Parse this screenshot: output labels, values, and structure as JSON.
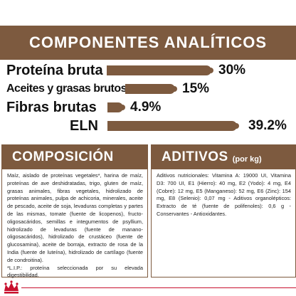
{
  "header": {
    "title": "COMPONENTES ANALÍTICOS"
  },
  "analytics": [
    {
      "label": "Proteína bruta",
      "value": "30%",
      "percent": 30
    },
    {
      "label": "Aceites y grasas brutos",
      "value": "15%",
      "percent": 15
    },
    {
      "label": "Fibras brutas",
      "value": "4.9%",
      "percent": 4.9
    },
    {
      "label": "ELN",
      "value": "39.2%",
      "percent": 39.2
    }
  ],
  "composicion": {
    "title": "COMPOSICIÓN",
    "text": "Maíz, aislado de proteínas vegetales*, harina de maíz, proteínas de ave deshidratadas, trigo, gluten de maíz, grasas animales, fibras vegetales, hidrolizado de proteínas animales, pulpa de achicoria, minerales, aceite de pescado, aceite de soja, levaduras completas y partes de las mismas, tomate (fuente de licopenos), fructo-oligosacáridos, semillas e integumentos de psyllium, hidrolizado de levaduras (fuente de manano-oligosacáridos), hidrolizado de crustáceo (fuente de glucosamina), aceite de borraja, extracto de rosa de la India (fuente de luteína), hidrolizado de cartílago (fuente de condroitina).",
    "footnote": "*L.I.P.: proteína seleccionada por su elevada digestibilidad."
  },
  "aditivos": {
    "title": "ADITIVOS",
    "subtitle": "(por kg)",
    "text": "Aditivos nutricionales: Vitamina A: 19000 UI, Vitamina D3: 700 UI, E1 (Hierro): 40 mg, E2 (Yodo): 4 mg, E4 (Cobre): 12 mg, E5 (Manganeso): 52 mg, E6 (Zinc): 154 mg, E8 (Selenio): 0,07 mg - Aditivos organolépticos: Extracto de té (fuente de polifenoles): 0,6 g - Conservantes - Antioxidantes."
  },
  "footer": {
    "logo": "royal-canin-crown-icon"
  },
  "colors": {
    "brand_brown": "#7d5a3f",
    "accent_red": "#c8102e"
  }
}
